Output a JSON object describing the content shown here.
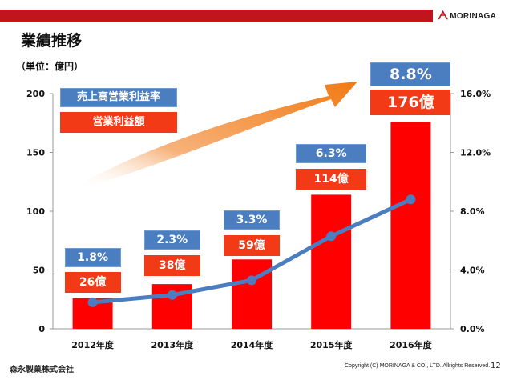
{
  "header": {
    "logo_mark": "ᗅ",
    "logo_text": "MORINAGA",
    "title": "業績推移",
    "unit": "（単位：億円）"
  },
  "legend": {
    "margin_label": "売上高営業利益率",
    "profit_label": "営業利益額"
  },
  "colors": {
    "bar": "#ff0000",
    "line": "#4a7ec0",
    "blue_box": "#4a7ec0",
    "red_box": "#f23a17",
    "topbar": "#c0151c",
    "arrow": "#f07a14"
  },
  "chart_data": {
    "type": "bar",
    "categories": [
      "2012年度",
      "2013年度",
      "2014年度",
      "2015年度",
      "2016年度"
    ],
    "series": [
      {
        "type": "bar",
        "axis": "left",
        "values": [
          26,
          38,
          59,
          114,
          176
        ],
        "labels": [
          "26億",
          "38億",
          "59億",
          "114億",
          "176億"
        ]
      },
      {
        "type": "line",
        "axis": "right",
        "values": [
          1.8,
          2.3,
          3.3,
          6.3,
          8.8
        ],
        "labels": [
          "1.8%",
          "2.3%",
          "3.3%",
          "6.3%",
          "8.8%"
        ]
      }
    ],
    "ylim": [
      0,
      200
    ],
    "yticks": [
      "0",
      "50",
      "100",
      "150",
      "200"
    ],
    "y2lim": [
      0,
      16
    ],
    "y2ticks": [
      "0.0%",
      "4.0%",
      "8.0%",
      "12.0%",
      "16.0%"
    ],
    "grid": false,
    "annotation": "orange upward arrow"
  },
  "footer": {
    "company": "森永製菓株式会社",
    "copyright": "Copyright (C) MORINAGA & CO., LTD. Allrights Reserved.",
    "page": "12"
  }
}
